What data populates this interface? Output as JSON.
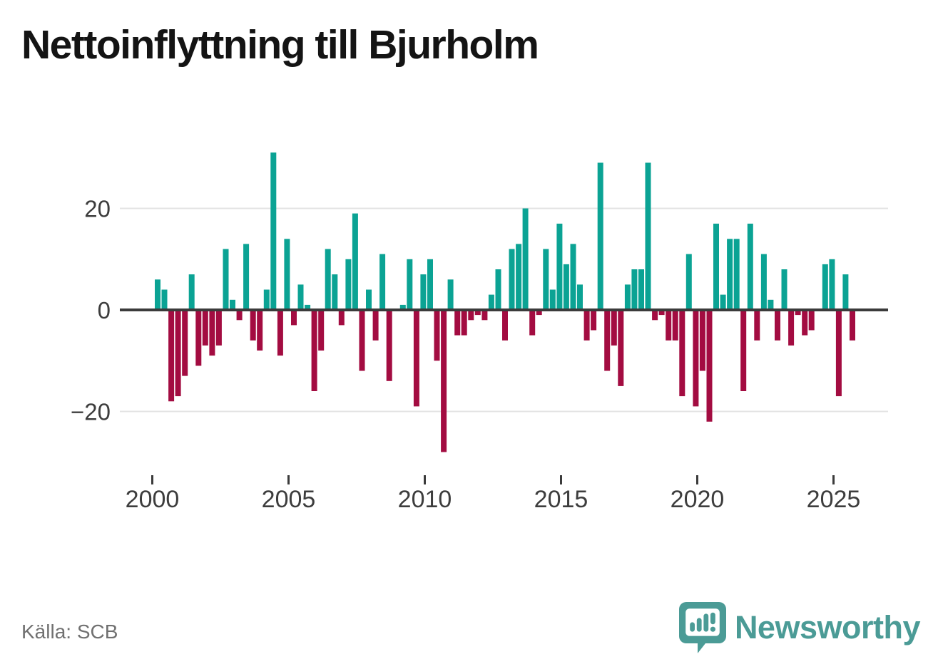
{
  "title": "Nettoinflyttning till Bjurholm",
  "source": "Källa: SCB",
  "branding": {
    "name": "Newsworthy"
  },
  "chart_data": {
    "type": "bar",
    "title": "Nettoinflyttning till Bjurholm",
    "frequency": "quarterly",
    "start_period": "2000 Q1",
    "end_period": "2025 Q3",
    "values": [
      6,
      4,
      -18,
      -17,
      -13,
      7,
      -11,
      -7,
      -9,
      -7,
      12,
      2,
      -2,
      13,
      -6,
      -8,
      4,
      31,
      -9,
      14,
      -3,
      5,
      1,
      -16,
      -8,
      12,
      7,
      -3,
      10,
      19,
      -12,
      4,
      -6,
      11,
      -14,
      0,
      1,
      10,
      -19,
      7,
      10,
      -10,
      -28,
      6,
      -5,
      -5,
      -2,
      -1,
      -2,
      3,
      8,
      -6,
      12,
      13,
      20,
      -5,
      -1,
      12,
      4,
      17,
      9,
      13,
      5,
      -6,
      -4,
      29,
      -12,
      -7,
      -15,
      5,
      8,
      8,
      29,
      -2,
      -1,
      -6,
      -6,
      -17,
      11,
      -19,
      -12,
      -22,
      17,
      3,
      14,
      14,
      -16,
      17,
      -6,
      11,
      2,
      -6,
      8,
      -7,
      -1,
      -5,
      -4,
      0,
      9,
      10,
      -17,
      7,
      -6
    ],
    "x_tick_labels": [
      "2000",
      "2005",
      "2010",
      "2015",
      "2020",
      "2025"
    ],
    "y_ticks": [
      {
        "value": 20,
        "label": "20"
      },
      {
        "value": 0,
        "label": "0"
      },
      {
        "value": -20,
        "label": "−20"
      }
    ],
    "ylim": [
      -30,
      33
    ],
    "grid": "horizontal",
    "legend": "none",
    "palette": {
      "positive": "#0BA394",
      "negative": "#A30C41",
      "zero_axis": "#3B3B3B",
      "gridline": "#E3E3E3",
      "tick_text": "#3D3D3D"
    }
  }
}
